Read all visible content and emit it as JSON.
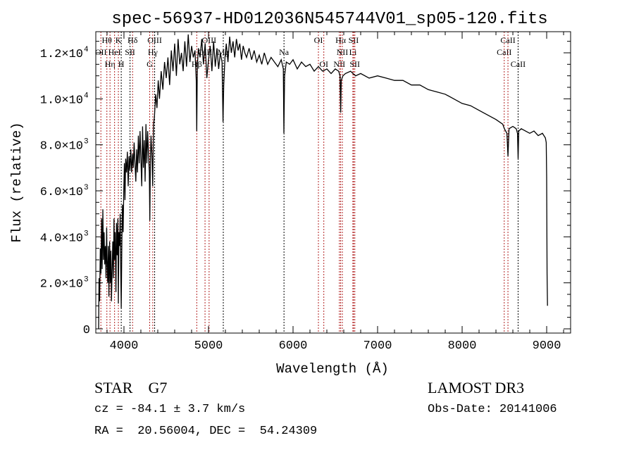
{
  "chart_data": {
    "type": "line",
    "title": "spec-56937-HD012036N545744V01_sp05-120.fits",
    "xlabel": "Wavelength (Å)",
    "ylabel": "Flux (relative)",
    "xlim": [
      3667,
      9283
    ],
    "ylim": [
      -184,
      12918
    ],
    "xticks": [
      4000,
      5000,
      6000,
      7000,
      8000,
      9000
    ],
    "xtick_labels": [
      "4000",
      "5000",
      "6000",
      "7000",
      "8000",
      "9000"
    ],
    "yticks": [
      0,
      2000,
      4000,
      6000,
      8000,
      10000,
      12000
    ],
    "ytick_labels": [
      {
        "mant": "0",
        "exp": ""
      },
      {
        "mant": "2.0×10",
        "exp": "3"
      },
      {
        "mant": "4.0×10",
        "exp": "3"
      },
      {
        "mant": "6.0×10",
        "exp": "3"
      },
      {
        "mant": "8.0×10",
        "exp": "3"
      },
      {
        "mant": "1.0×10",
        "exp": "4"
      },
      {
        "mant": "1.2×10",
        "exp": "4"
      }
    ],
    "grid": false,
    "line_color": "#000000",
    "series": [
      {
        "name": "flux",
        "x": [
          3700,
          3705,
          3712,
          3720,
          3728,
          3735,
          3742,
          3750,
          3758,
          3765,
          3772,
          3780,
          3788,
          3795,
          3800,
          3808,
          3815,
          3822,
          3830,
          3838,
          3845,
          3852,
          3860,
          3868,
          3875,
          3882,
          3889,
          3896,
          3905,
          3912,
          3920,
          3928,
          3934,
          3940,
          3948,
          3955,
          3962,
          3968,
          3975,
          3982,
          3990,
          3998,
          4005,
          4012,
          4020,
          4030,
          4040,
          4050,
          4060,
          4070,
          4080,
          4090,
          4102,
          4110,
          4120,
          4130,
          4140,
          4150,
          4160,
          4170,
          4180,
          4190,
          4200,
          4210,
          4220,
          4230,
          4240,
          4250,
          4260,
          4270,
          4280,
          4290,
          4300,
          4306,
          4312,
          4320,
          4330,
          4340,
          4350,
          4360,
          4375,
          4390,
          4405,
          4420,
          4440,
          4460,
          4480,
          4500,
          4520,
          4540,
          4560,
          4580,
          4600,
          4620,
          4640,
          4660,
          4680,
          4700,
          4720,
          4740,
          4760,
          4780,
          4800,
          4820,
          4840,
          4855,
          4861,
          4868,
          4880,
          4900,
          4920,
          4940,
          4960,
          4980,
          5000,
          5020,
          5040,
          5060,
          5080,
          5100,
          5120,
          5140,
          5160,
          5172,
          5180,
          5195,
          5210,
          5230,
          5250,
          5270,
          5290,
          5310,
          5330,
          5350,
          5370,
          5390,
          5410,
          5430,
          5450,
          5480,
          5510,
          5540,
          5570,
          5600,
          5630,
          5660,
          5700,
          5740,
          5780,
          5820,
          5860,
          5885,
          5892,
          5900,
          5920,
          5960,
          6000,
          6050,
          6100,
          6150,
          6200,
          6250,
          6300,
          6350,
          6400,
          6450,
          6500,
          6540,
          6556,
          6563,
          6570,
          6590,
          6620,
          6680,
          6740,
          6800,
          6900,
          7000,
          7100,
          7200,
          7300,
          7400,
          7500,
          7600,
          7700,
          7800,
          7900,
          8000,
          8100,
          8200,
          8300,
          8400,
          8480,
          8500,
          8530,
          8542,
          8555,
          8600,
          8640,
          8655,
          8662,
          8670,
          8700,
          8750,
          8800,
          8850,
          8900,
          8950,
          8985,
          8995,
          9000,
          9005,
          9010
        ],
        "y": [
          0,
          2200,
          1200,
          3500,
          2400,
          4800,
          2600,
          5200,
          3000,
          4200,
          2800,
          3600,
          2200,
          4400,
          3000,
          2000,
          3600,
          1400,
          3800,
          2000,
          3400,
          1200,
          2600,
          3800,
          2200,
          4800,
          3000,
          4200,
          1600,
          4600,
          3200,
          4800,
          1100,
          4200,
          3600,
          5000,
          2600,
          900,
          3800,
          5400,
          4200,
          6000,
          7200,
          5600,
          7400,
          6800,
          7700,
          6200,
          7500,
          6900,
          7800,
          6800,
          7600,
          7000,
          8100,
          7200,
          6400,
          7800,
          6800,
          8400,
          7200,
          8600,
          7400,
          6200,
          8800,
          7000,
          8200,
          6400,
          8900,
          7200,
          8600,
          7600,
          6800,
          4700,
          7200,
          8400,
          7600,
          6200,
          8900,
          9200,
          10200,
          9600,
          10800,
          10000,
          11200,
          10400,
          11600,
          10900,
          11800,
          10600,
          12100,
          11200,
          12400,
          11000,
          12600,
          11500,
          12000,
          11200,
          12500,
          11400,
          12800,
          11600,
          12300,
          11800,
          12100,
          10800,
          8600,
          11400,
          12200,
          11800,
          12600,
          11500,
          12400,
          10900,
          11700,
          12300,
          11200,
          12500,
          11400,
          12200,
          11300,
          12000,
          11600,
          9000,
          10600,
          11800,
          12400,
          11600,
          12700,
          12000,
          12500,
          11800,
          12600,
          12100,
          12400,
          11700,
          12300,
          12000,
          11800,
          12200,
          11700,
          12100,
          11600,
          11900,
          11500,
          12000,
          11500,
          11800,
          11600,
          11400,
          11700,
          11300,
          8500,
          11000,
          11600,
          11500,
          11700,
          11300,
          11600,
          11400,
          11500,
          11200,
          11400,
          11200,
          11300,
          11100,
          11300,
          11200,
          11000,
          9400,
          10800,
          11000,
          11100,
          11200,
          11000,
          11100,
          10900,
          11000,
          10900,
          10800,
          10800,
          10600,
          10600,
          10400,
          10300,
          10200,
          10000,
          9800,
          9700,
          9500,
          9300,
          9100,
          8900,
          8700,
          8500,
          7500,
          8700,
          8800,
          8700,
          8500,
          7400,
          8600,
          8700,
          8600,
          8500,
          8600,
          8400,
          8500,
          8300,
          8100,
          6600,
          2400,
          1000
        ],
        "note": "approximate trace"
      }
    ],
    "spectral_lines": [
      {
        "name": "OII",
        "wl": 3727,
        "tier": 2,
        "color": "#b22222"
      },
      {
        "name": "Hθ",
        "wl": 3798,
        "tier": 1,
        "color": "#b22222"
      },
      {
        "name": "Hη",
        "wl": 3835,
        "tier": 3,
        "color": "#b22222"
      },
      {
        "name": "HeI",
        "wl": 3889,
        "tier": 2,
        "color": "#b22222"
      },
      {
        "name": "K",
        "wl": 3934,
        "tier": 1,
        "color": "#b22222"
      },
      {
        "name": "H",
        "wl": 3968,
        "tier": 3,
        "color": "#000000"
      },
      {
        "name": "SII",
        "wl": 4072,
        "tier": 2,
        "color": "#000000"
      },
      {
        "name": "Hδ",
        "wl": 4102,
        "tier": 1,
        "color": "#b22222"
      },
      {
        "name": "G",
        "wl": 4304,
        "tier": 3,
        "color": "#b22222"
      },
      {
        "name": "Hγ",
        "wl": 4341,
        "tier": 2,
        "color": "#b22222"
      },
      {
        "name": "OIII",
        "wl": 4363,
        "tier": 1,
        "color": "#000000"
      },
      {
        "name": "Hβ",
        "wl": 4861,
        "tier": 3,
        "color": "#b22222"
      },
      {
        "name": "OIII",
        "wl": 4959,
        "tier": 2,
        "color": "#b22222"
      },
      {
        "name": "OIII",
        "wl": 5007,
        "tier": 1,
        "color": "#b22222"
      },
      {
        "name": "Mg",
        "wl": 5175,
        "tier": 2,
        "color": "#000000"
      },
      {
        "name": "Na",
        "wl": 5893,
        "tier": 2,
        "color": "#000000"
      },
      {
        "name": "OI",
        "wl": 6300,
        "tier": 1,
        "color": "#b22222"
      },
      {
        "name": "OI",
        "wl": 6364,
        "tier": 3,
        "color": "#b22222"
      },
      {
        "name": "NII",
        "wl": 6548,
        "tier": 3,
        "color": "#b22222"
      },
      {
        "name": "Hα",
        "wl": 6563,
        "tier": 1,
        "color": "#b22222"
      },
      {
        "name": "NII",
        "wl": 6583,
        "tier": 2,
        "color": "#b22222"
      },
      {
        "name": "Li",
        "wl": 6708,
        "tier": 2,
        "color": "#b22222"
      },
      {
        "name": "SII",
        "wl": 6716,
        "tier": 1,
        "color": "#b22222"
      },
      {
        "name": "SII",
        "wl": 6731,
        "tier": 3,
        "color": "#b22222"
      },
      {
        "name": "CaII",
        "wl": 8498,
        "tier": 2,
        "color": "#b22222"
      },
      {
        "name": "CaII",
        "wl": 8542,
        "tier": 1,
        "color": "#b22222"
      },
      {
        "name": "CaII",
        "wl": 8662,
        "tier": 3,
        "color": "#000000"
      }
    ]
  },
  "info": {
    "class": "STAR    G7",
    "cz": "cz = -84.1 ± 3.7 km/s",
    "coords": "RA =  20.56004, DEC =  54.24309",
    "survey": "LAMOST DR3",
    "obs_date": "Obs-Date: 20141006"
  }
}
